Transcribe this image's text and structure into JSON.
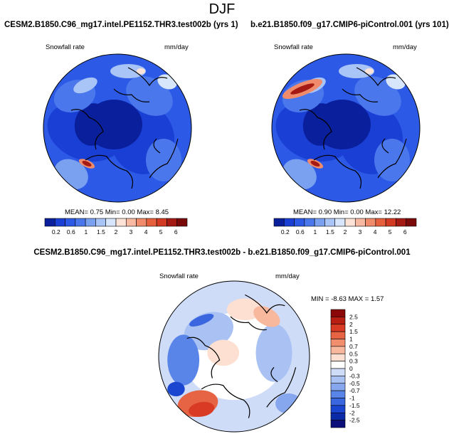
{
  "page": {
    "title": "DJF"
  },
  "colors": {
    "abs_scale": [
      "#0a1f9c",
      "#1a3fd4",
      "#2c5ae6",
      "#4a78ec",
      "#7aa0f0",
      "#a9c4f6",
      "#d8e6fb",
      "#fbe3d8",
      "#f7b9a1",
      "#f08c6c",
      "#e6603e",
      "#d33a22",
      "#a51a12",
      "#7a0a0a"
    ],
    "diff_scale": [
      "#0a0f7a",
      "#0a2aa8",
      "#1a45d0",
      "#3a66e0",
      "#5a85e8",
      "#86a6ee",
      "#a9c1f3",
      "#cfdcf8",
      "#ffffff",
      "#fde0d2",
      "#f8b89e",
      "#f18e6e",
      "#e66444",
      "#d83a24",
      "#b81e12",
      "#8a0808"
    ],
    "coast": "#000000"
  },
  "chart_data": [
    {
      "type": "heatmap",
      "title": "CESM2.B1850.C96_mg17.intel.PE1152.THR3.test002b (yrs 1)",
      "left_label": "Snowfall rate",
      "right_label": "mm/day",
      "stats": {
        "mean_label": "MEAN=",
        "mean": "0.75",
        "min_label": "Min=",
        "min": "0.00",
        "max_label": "Max=",
        "max": "8.45"
      },
      "colorbar_ticks": [
        "0.2",
        "0.6",
        "1",
        "1.5",
        "2",
        "3",
        "4",
        "5",
        "6"
      ]
    },
    {
      "type": "heatmap",
      "title": "b.e21.B1850.f09_g17.CMIP6-piControl.001 (yrs 101)",
      "left_label": "Snowfall rate",
      "right_label": "mm/day",
      "stats": {
        "mean_label": "MEAN=",
        "mean": "0.90",
        "min_label": "Min=",
        "min": "0.00",
        "max_label": "Max=",
        "max": "12.22"
      },
      "colorbar_ticks": [
        "0.2",
        "0.6",
        "1",
        "1.5",
        "2",
        "3",
        "4",
        "5",
        "6"
      ]
    },
    {
      "type": "heatmap",
      "title": "CESM2.B1850.C96_mg17.intel.PE1152.THR3.test002b - b.e21.B1850.f09_g17.CMIP6-piControl.001",
      "left_label": "Snowfall rate",
      "right_label": "mm/day",
      "stats": {
        "min_label": "MIN =",
        "min": "-8.63",
        "max_label": "MAX =",
        "max": "1.57"
      },
      "colorbar_ticks": [
        "2.5",
        "2",
        "1.5",
        "1",
        "0.7",
        "0.5",
        "0.3",
        "0",
        "-0.3",
        "-0.5",
        "-0.7",
        "-1",
        "-1.5",
        "-2",
        "-2.5"
      ]
    }
  ]
}
